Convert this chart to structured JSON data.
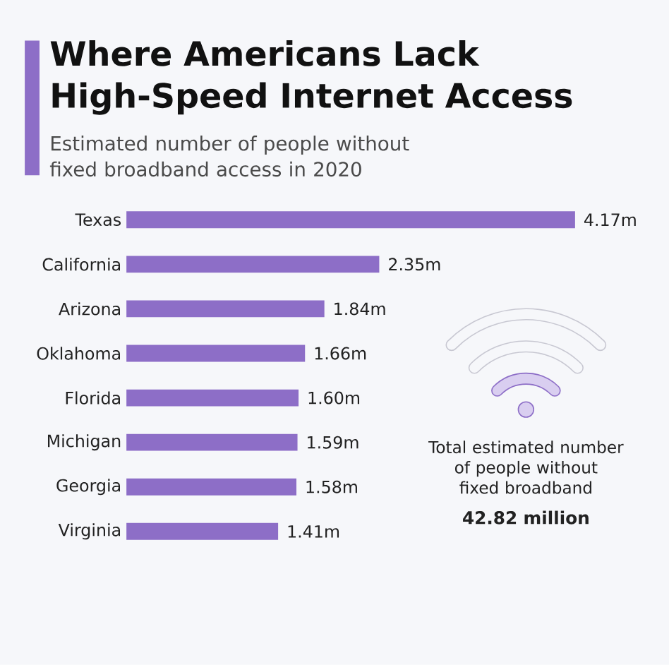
{
  "chart_data": {
    "type": "bar",
    "orientation": "horizontal",
    "title": "Where Americans Lack High-Speed Internet Access",
    "subtitle": "Estimated number of people without fixed broadband access in 2020",
    "categories": [
      "Texas",
      "California",
      "Arizona",
      "Oklahoma",
      "Florida",
      "Michigan",
      "Georgia",
      "Virginia"
    ],
    "values": [
      4.17,
      2.35,
      1.84,
      1.66,
      1.6,
      1.59,
      1.58,
      1.41
    ],
    "value_labels": [
      "4.17m",
      "2.35m",
      "1.84m",
      "1.66m",
      "1.60m",
      "1.59m",
      "1.58m",
      "1.41m"
    ],
    "color": "#8d6ec7",
    "annotations": [
      "Total estimated number of people without fixed broadband",
      "42.82 million"
    ]
  }
}
